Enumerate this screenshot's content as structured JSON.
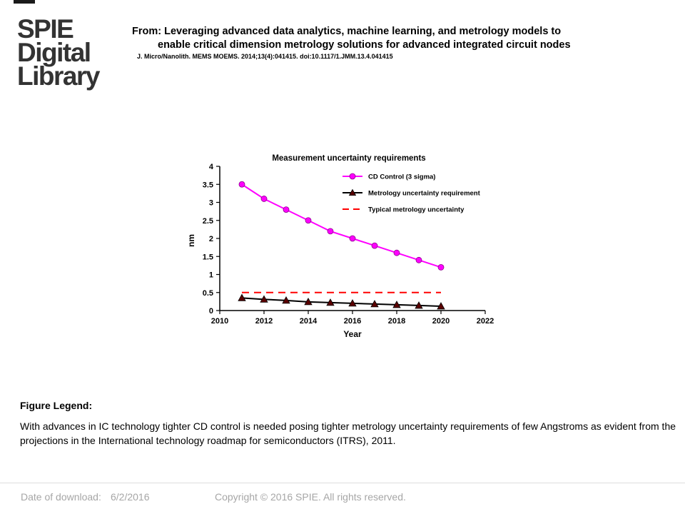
{
  "logo": {
    "line1": "SPIE",
    "line2": "Digital",
    "line3": "Library"
  },
  "header": {
    "title_line1": "From: Leveraging advanced data analytics, machine learning, and metrology models to",
    "title_line2": "enable critical dimension metrology solutions for advanced integrated circuit nodes",
    "citation": "J. Micro/Nanolith. MEMS MOEMS. 2014;13(4):041415. doi:10.1117/1.JMM.13.4.041415"
  },
  "chart_data": {
    "type": "line",
    "title": "Measurement uncertainty requirements",
    "xlabel": "Year",
    "ylabel": "nm",
    "xlim": [
      2010,
      2022
    ],
    "ylim": [
      0,
      4
    ],
    "x_ticks": [
      "2010",
      "2012",
      "2014",
      "2016",
      "2018",
      "2020",
      "2022"
    ],
    "y_ticks": [
      "0",
      "0.5",
      "1",
      "1.5",
      "2",
      "2.5",
      "3",
      "3.5",
      "4"
    ],
    "grid": false,
    "legend_position": "top-right",
    "series": [
      {
        "name": "CD Control (3 sigma)",
        "color": "#ff00ff",
        "marker": "circle",
        "x": [
          2011,
          2012,
          2013,
          2014,
          2015,
          2016,
          2017,
          2018,
          2019,
          2020
        ],
        "values": [
          3.5,
          3.1,
          2.8,
          2.5,
          2.2,
          2.0,
          1.8,
          1.6,
          1.4,
          1.2
        ]
      },
      {
        "name": "Metrology uncertainty requirement",
        "color": "#000000",
        "marker": "triangle",
        "x": [
          2011,
          2012,
          2013,
          2014,
          2015,
          2016,
          2017,
          2018,
          2019,
          2020
        ],
        "values": [
          0.35,
          0.31,
          0.28,
          0.24,
          0.22,
          0.2,
          0.18,
          0.16,
          0.14,
          0.12
        ]
      },
      {
        "name": "Typical metrology uncertainty",
        "color": "#ff0000",
        "marker": "none",
        "dashed": true,
        "x": [
          2011,
          2020
        ],
        "values": [
          0.5,
          0.5
        ]
      }
    ]
  },
  "figure_legend": {
    "heading": "Figure Legend:",
    "text": "With advances in IC technology tighter CD control is needed posing tighter metrology uncertainty requirements of few Angstroms as evident from the projections in the International technology roadmap for semiconductors (ITRS), 2011."
  },
  "footer": {
    "download_label": "Date of download:",
    "download_date": "6/2/2016",
    "copyright": "Copyright © 2016 SPIE. All rights reserved."
  }
}
